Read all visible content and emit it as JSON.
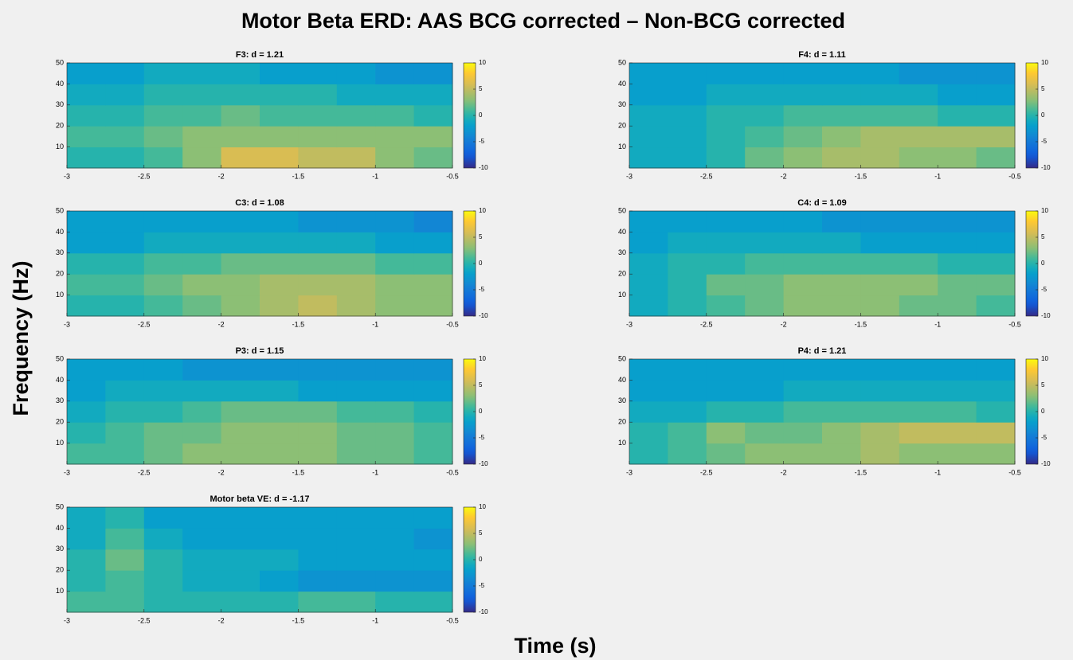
{
  "title": "Motor Beta ERD: AAS BCG corrected – Non-BCG corrected",
  "xlabel": "Time (s)",
  "ylabel": "Frequency (Hz)",
  "chart_data": [
    {
      "type": "heatmap",
      "title": "F3: d = 1.21",
      "colormap": "parula",
      "xbins": [
        -3,
        -2.75,
        -2.5,
        -2.25,
        -2,
        -1.75,
        -1.5,
        -1.25,
        -1,
        -0.75,
        -0.5
      ],
      "ybins": [
        0,
        10,
        20,
        30,
        40,
        50
      ],
      "z": [
        [
          0,
          0,
          1,
          3,
          6,
          6,
          5,
          5,
          3,
          2
        ],
        [
          1,
          1,
          2,
          3,
          3,
          3,
          3,
          3,
          3,
          3
        ],
        [
          0,
          0,
          1,
          1,
          2,
          1,
          1,
          1,
          1,
          0
        ],
        [
          -1,
          -1,
          0,
          0,
          0,
          0,
          0,
          -1,
          -1,
          -1
        ],
        [
          -2,
          -2,
          -1,
          -1,
          -1,
          -2,
          -2,
          -2,
          -3,
          -3
        ]
      ],
      "xlim": [
        -3,
        -0.5
      ],
      "xticks": [
        -3,
        -2.5,
        -2,
        -1.5,
        -1,
        -0.5
      ],
      "ylim": [
        0,
        50
      ],
      "yticks": [
        10,
        20,
        30,
        40,
        50
      ],
      "clim": [
        -10,
        10
      ],
      "cticks": [
        -10,
        -5,
        0,
        5,
        10
      ]
    },
    {
      "type": "heatmap",
      "title": "F4: d = 1.11",
      "colormap": "parula",
      "xbins": [
        -3,
        -2.75,
        -2.5,
        -2.25,
        -2,
        -1.75,
        -1.5,
        -1.25,
        -1,
        -0.75,
        -0.5
      ],
      "ybins": [
        0,
        10,
        20,
        30,
        40,
        50
      ],
      "z": [
        [
          -1,
          -1,
          0,
          2,
          3,
          4,
          4,
          3,
          3,
          2
        ],
        [
          -1,
          -1,
          0,
          1,
          2,
          3,
          4,
          4,
          4,
          4
        ],
        [
          -1,
          -1,
          0,
          0,
          1,
          1,
          1,
          1,
          0,
          0
        ],
        [
          -2,
          -2,
          -1,
          -1,
          -1,
          -1,
          -1,
          -1,
          -2,
          -2
        ],
        [
          -2,
          -2,
          -2,
          -2,
          -2,
          -2,
          -2,
          -3,
          -3,
          -3
        ]
      ],
      "xlim": [
        -3,
        -0.5
      ],
      "xticks": [
        -3,
        -2.5,
        -2,
        -1.5,
        -1,
        -0.5
      ],
      "ylim": [
        0,
        50
      ],
      "yticks": [
        10,
        20,
        30,
        40,
        50
      ],
      "clim": [
        -10,
        10
      ],
      "cticks": [
        -10,
        -5,
        0,
        5,
        10
      ]
    },
    {
      "type": "heatmap",
      "title": "C3: d = 1.08",
      "colormap": "parula",
      "xbins": [
        -3,
        -2.75,
        -2.5,
        -2.25,
        -2,
        -1.75,
        -1.5,
        -1.25,
        -1,
        -0.75,
        -0.5
      ],
      "ybins": [
        0,
        10,
        20,
        30,
        40,
        50
      ],
      "z": [
        [
          0,
          0,
          1,
          2,
          3,
          4,
          5,
          4,
          3,
          3
        ],
        [
          1,
          1,
          2,
          3,
          3,
          4,
          4,
          4,
          3,
          3
        ],
        [
          0,
          0,
          1,
          1,
          2,
          2,
          2,
          2,
          1,
          1
        ],
        [
          -2,
          -2,
          -1,
          -1,
          -1,
          -1,
          -1,
          -1,
          -2,
          -2
        ],
        [
          -2,
          -2,
          -2,
          -2,
          -2,
          -2,
          -3,
          -3,
          -3,
          -4
        ]
      ],
      "xlim": [
        -3,
        -0.5
      ],
      "xticks": [
        -3,
        -2.5,
        -2,
        -1.5,
        -1,
        -0.5
      ],
      "ylim": [
        0,
        50
      ],
      "yticks": [
        10,
        20,
        30,
        40,
        50
      ],
      "clim": [
        -10,
        10
      ],
      "cticks": [
        -10,
        -5,
        0,
        5,
        10
      ]
    },
    {
      "type": "heatmap",
      "title": "C4: d = 1.09",
      "colormap": "parula",
      "xbins": [
        -3,
        -2.75,
        -2.5,
        -2.25,
        -2,
        -1.75,
        -1.5,
        -1.25,
        -1,
        -0.75,
        -0.5
      ],
      "ybins": [
        0,
        10,
        20,
        30,
        40,
        50
      ],
      "z": [
        [
          -1,
          0,
          1,
          2,
          3,
          3,
          3,
          2,
          2,
          1
        ],
        [
          -1,
          0,
          2,
          2,
          3,
          3,
          3,
          3,
          2,
          2
        ],
        [
          -1,
          0,
          0,
          1,
          1,
          1,
          1,
          1,
          0,
          0
        ],
        [
          -2,
          -1,
          -1,
          -1,
          -1,
          -1,
          -2,
          -2,
          -2,
          -2
        ],
        [
          -2,
          -2,
          -2,
          -2,
          -2,
          -3,
          -3,
          -3,
          -3,
          -3
        ]
      ],
      "xlim": [
        -3,
        -0.5
      ],
      "xticks": [
        -3,
        -2.5,
        -2,
        -1.5,
        -1,
        -0.5
      ],
      "ylim": [
        0,
        50
      ],
      "yticks": [
        10,
        20,
        30,
        40,
        50
      ],
      "clim": [
        -10,
        10
      ],
      "cticks": [
        -10,
        -5,
        0,
        5,
        10
      ]
    },
    {
      "type": "heatmap",
      "title": "P3: d = 1.15",
      "colormap": "parula",
      "xbins": [
        -3,
        -2.75,
        -2.5,
        -2.25,
        -2,
        -1.75,
        -1.5,
        -1.25,
        -1,
        -0.75,
        -0.5
      ],
      "ybins": [
        0,
        10,
        20,
        30,
        40,
        50
      ],
      "z": [
        [
          1,
          1,
          2,
          3,
          3,
          3,
          3,
          2,
          2,
          1
        ],
        [
          0,
          1,
          2,
          2,
          3,
          3,
          3,
          2,
          2,
          1
        ],
        [
          -1,
          0,
          0,
          1,
          2,
          2,
          2,
          1,
          1,
          0
        ],
        [
          -2,
          -1,
          -1,
          -1,
          -1,
          -1,
          -2,
          -2,
          -2,
          -2
        ],
        [
          -2,
          -2,
          -2,
          -3,
          -3,
          -3,
          -3,
          -3,
          -3,
          -3
        ]
      ],
      "xlim": [
        -3,
        -0.5
      ],
      "xticks": [
        -3,
        -2.5,
        -2,
        -1.5,
        -1,
        -0.5
      ],
      "ylim": [
        0,
        50
      ],
      "yticks": [
        10,
        20,
        30,
        40,
        50
      ],
      "clim": [
        -10,
        10
      ],
      "cticks": [
        -10,
        -5,
        0,
        5,
        10
      ]
    },
    {
      "type": "heatmap",
      "title": "P4: d = 1.21",
      "colormap": "parula",
      "xbins": [
        -3,
        -2.75,
        -2.5,
        -2.25,
        -2,
        -1.75,
        -1.5,
        -1.25,
        -1,
        -0.75,
        -0.5
      ],
      "ybins": [
        0,
        10,
        20,
        30,
        40,
        50
      ],
      "z": [
        [
          0,
          1,
          2,
          3,
          3,
          3,
          4,
          3,
          3,
          3
        ],
        [
          0,
          1,
          3,
          2,
          2,
          3,
          4,
          5,
          5,
          5
        ],
        [
          -1,
          -1,
          0,
          0,
          1,
          1,
          1,
          1,
          1,
          0
        ],
        [
          -2,
          -2,
          -2,
          -2,
          -1,
          -1,
          -1,
          -1,
          -1,
          -1
        ],
        [
          -2,
          -2,
          -2,
          -2,
          -2,
          -2,
          -2,
          -2,
          -2,
          -2
        ]
      ],
      "xlim": [
        -3,
        -0.5
      ],
      "xticks": [
        -3,
        -2.5,
        -2,
        -1.5,
        -1,
        -0.5
      ],
      "ylim": [
        0,
        50
      ],
      "yticks": [
        10,
        20,
        30,
        40,
        50
      ],
      "clim": [
        -10,
        10
      ],
      "cticks": [
        -10,
        -5,
        0,
        5,
        10
      ]
    },
    {
      "type": "heatmap",
      "title": "Motor beta VE: d = -1.17",
      "colormap": "parula",
      "xbins": [
        -3,
        -2.75,
        -2.5,
        -2.25,
        -2,
        -1.75,
        -1.5,
        -1.25,
        -1,
        -0.75,
        -0.5
      ],
      "ybins": [
        0,
        10,
        20,
        30,
        40,
        50
      ],
      "z": [
        [
          1,
          1,
          0,
          0,
          0,
          0,
          1,
          1,
          0,
          0
        ],
        [
          0,
          1,
          0,
          -1,
          -1,
          -2,
          -3,
          -3,
          -3,
          -3
        ],
        [
          0,
          2,
          0,
          -1,
          -1,
          -1,
          -2,
          -2,
          -2,
          -2
        ],
        [
          -1,
          1,
          -1,
          -2,
          -2,
          -2,
          -2,
          -2,
          -2,
          -3
        ],
        [
          -1,
          0,
          -2,
          -2,
          -2,
          -2,
          -2,
          -2,
          -2,
          -2
        ]
      ],
      "xlim": [
        -3,
        -0.5
      ],
      "xticks": [
        -3,
        -2.5,
        -2,
        -1.5,
        -1,
        -0.5
      ],
      "ylim": [
        0,
        50
      ],
      "yticks": [
        10,
        20,
        30,
        40,
        50
      ],
      "clim": [
        -10,
        10
      ],
      "cticks": [
        -10,
        -5,
        0,
        5,
        10
      ]
    }
  ]
}
